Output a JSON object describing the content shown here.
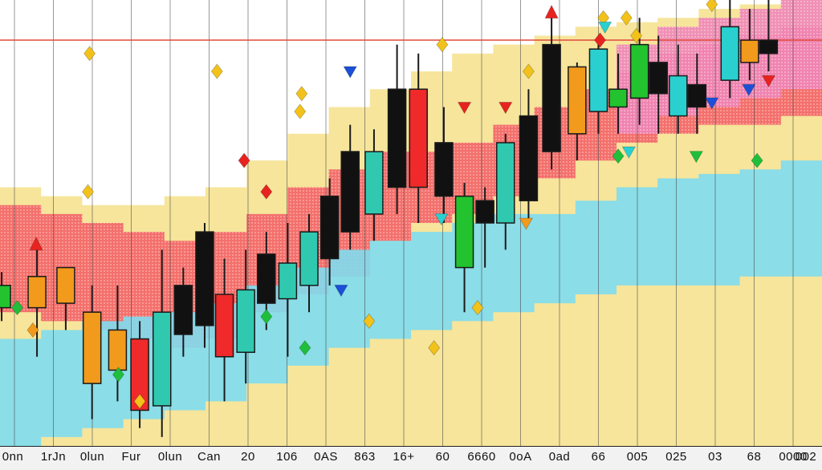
{
  "chart_data": {
    "type": "candlestick",
    "x_tick_labels": [
      "0nn",
      "1rJn",
      "0lun",
      "Fur",
      "0lun",
      "Can",
      "20",
      "106",
      "0AS",
      "863",
      "16+",
      "60",
      "6660",
      "0oA",
      "0ad",
      "66",
      "005",
      "025",
      "03",
      "68",
      "0000",
      "002"
    ],
    "ylim": [
      0,
      100
    ],
    "grid": true,
    "legend": "none",
    "colors": {
      "candle_black": "#111111",
      "candle_red": "#f02a2a",
      "candle_green": "#22c32e",
      "candle_cyan": "#2ad0cf",
      "candle_teal": "#30c9b0",
      "candle_orange": "#f29a1c",
      "band_red": "#f25858",
      "band_yellow": "#f5e08a",
      "band_cyan": "#7fdcef",
      "band_pink": "#ef7fb6",
      "marker_gold": "#f3c21a",
      "marker_red": "#e8231f",
      "marker_blue": "#1c4fd8",
      "marker_green": "#1fbf3b"
    },
    "bands": {
      "x": [
        0,
        5,
        10,
        15,
        20,
        25,
        30,
        35,
        40,
        45,
        50,
        55,
        60,
        65,
        70,
        75,
        80,
        85,
        90,
        95,
        100
      ],
      "cyan_upper": [
        24,
        26,
        28,
        29,
        30,
        32,
        36,
        40,
        44,
        46,
        48,
        50,
        52,
        52,
        55,
        58,
        60,
        61,
        62,
        64,
        68
      ],
      "cyan_lower": [
        0,
        2,
        4,
        6,
        8,
        10,
        14,
        18,
        22,
        24,
        26,
        28,
        30,
        32,
        34,
        36,
        36,
        36,
        38,
        38,
        40
      ],
      "yellow_upper": [
        58,
        56,
        54,
        54,
        56,
        58,
        64,
        70,
        76,
        80,
        84,
        88,
        90,
        92,
        94,
        95,
        96,
        98,
        99,
        100,
        100
      ],
      "red_upper": [
        54,
        52,
        50,
        48,
        46,
        48,
        52,
        58,
        62,
        66,
        66,
        68,
        72,
        76,
        80,
        84,
        88,
        90,
        92,
        94,
        96
      ],
      "red_lower": [
        30,
        28,
        26,
        24,
        22,
        24,
        30,
        34,
        38,
        46,
        50,
        52,
        56,
        60,
        64,
        68,
        70,
        72,
        72,
        74,
        78
      ]
    },
    "candles": [
      {
        "x": 0.2,
        "o": 31,
        "h": 39,
        "l": 28,
        "c": 36,
        "color": "green"
      },
      {
        "x": 4.5,
        "o": 31,
        "h": 44,
        "l": 20,
        "c": 38,
        "color": "orange"
      },
      {
        "x": 8.0,
        "o": 32,
        "h": 40,
        "l": 26,
        "c": 40,
        "color": "orange"
      },
      {
        "x": 11.2,
        "o": 14,
        "h": 36,
        "l": 6,
        "c": 30,
        "color": "orange"
      },
      {
        "x": 14.3,
        "o": 17,
        "h": 36,
        "l": 10,
        "c": 26,
        "color": "orange"
      },
      {
        "x": 17.0,
        "o": 8,
        "h": 28,
        "l": 4,
        "c": 24,
        "color": "red"
      },
      {
        "x": 19.7,
        "o": 9,
        "h": 44,
        "l": 2,
        "c": 30,
        "color": "teal"
      },
      {
        "x": 22.3,
        "o": 25,
        "h": 40,
        "l": 20,
        "c": 36,
        "color": "black"
      },
      {
        "x": 24.9,
        "o": 27,
        "h": 50,
        "l": 22,
        "c": 48,
        "color": "black"
      },
      {
        "x": 27.3,
        "o": 20,
        "h": 42,
        "l": 10,
        "c": 34,
        "color": "red"
      },
      {
        "x": 29.9,
        "o": 21,
        "h": 44,
        "l": 14,
        "c": 35,
        "color": "teal"
      },
      {
        "x": 32.4,
        "o": 32,
        "h": 48,
        "l": 26,
        "c": 43,
        "color": "black"
      },
      {
        "x": 35.0,
        "o": 33,
        "h": 50,
        "l": 20,
        "c": 41,
        "color": "teal"
      },
      {
        "x": 37.6,
        "o": 36,
        "h": 52,
        "l": 30,
        "c": 48,
        "color": "teal"
      },
      {
        "x": 40.1,
        "o": 42,
        "h": 60,
        "l": 36,
        "c": 56,
        "color": "black"
      },
      {
        "x": 42.6,
        "o": 48,
        "h": 72,
        "l": 44,
        "c": 66,
        "color": "black"
      },
      {
        "x": 45.5,
        "o": 52,
        "h": 71,
        "l": 46,
        "c": 66,
        "color": "teal"
      },
      {
        "x": 48.3,
        "o": 58,
        "h": 90,
        "l": 52,
        "c": 80,
        "color": "black"
      },
      {
        "x": 50.9,
        "o": 58,
        "h": 88,
        "l": 50,
        "c": 80,
        "color": "red"
      },
      {
        "x": 54.0,
        "o": 56,
        "h": 76,
        "l": 50,
        "c": 68,
        "color": "black"
      },
      {
        "x": 56.5,
        "o": 40,
        "h": 59,
        "l": 30,
        "c": 56,
        "color": "green"
      },
      {
        "x": 59.0,
        "o": 50,
        "h": 58,
        "l": 40,
        "c": 55,
        "color": "black"
      },
      {
        "x": 61.5,
        "o": 50,
        "h": 70,
        "l": 44,
        "c": 68,
        "color": "teal"
      },
      {
        "x": 64.3,
        "o": 55,
        "h": 80,
        "l": 50,
        "c": 74,
        "color": "black"
      },
      {
        "x": 67.1,
        "o": 66,
        "h": 96,
        "l": 62,
        "c": 90,
        "color": "black"
      },
      {
        "x": 70.2,
        "o": 70,
        "h": 86,
        "l": 64,
        "c": 85,
        "color": "orange"
      },
      {
        "x": 72.8,
        "o": 75,
        "h": 92,
        "l": 70,
        "c": 89,
        "color": "cyan"
      },
      {
        "x": 75.2,
        "o": 76,
        "h": 88,
        "l": 70,
        "c": 80,
        "color": "green"
      },
      {
        "x": 77.8,
        "o": 78,
        "h": 96,
        "l": 72,
        "c": 90,
        "color": "green"
      },
      {
        "x": 80.1,
        "o": 79,
        "h": 92,
        "l": 70,
        "c": 86,
        "color": "black"
      },
      {
        "x": 82.5,
        "o": 74,
        "h": 90,
        "l": 70,
        "c": 83,
        "color": "cyan"
      },
      {
        "x": 84.8,
        "o": 76,
        "h": 88,
        "l": 70,
        "c": 81,
        "color": "black"
      },
      {
        "x": 88.8,
        "o": 82,
        "h": 100,
        "l": 78,
        "c": 94,
        "color": "cyan"
      },
      {
        "x": 91.2,
        "o": 86,
        "h": 98,
        "l": 82,
        "c": 91,
        "color": "orange"
      },
      {
        "x": 93.5,
        "o": 88,
        "h": 100,
        "l": 84,
        "c": 91,
        "color": "black"
      }
    ],
    "markers": [
      {
        "x": 10.9,
        "y": 88,
        "shape": "diamond",
        "color": "gold"
      },
      {
        "x": 26.4,
        "y": 84,
        "shape": "diamond",
        "color": "gold"
      },
      {
        "x": 36.7,
        "y": 79,
        "shape": "diamond",
        "color": "gold"
      },
      {
        "x": 36.5,
        "y": 75,
        "shape": "diamond",
        "color": "gold"
      },
      {
        "x": 29.7,
        "y": 64,
        "shape": "diamond",
        "color": "red"
      },
      {
        "x": 32.4,
        "y": 57,
        "shape": "diamond",
        "color": "red"
      },
      {
        "x": 10.7,
        "y": 57,
        "shape": "diamond",
        "color": "gold"
      },
      {
        "x": 4.4,
        "y": 45,
        "shape": "arrow-up",
        "color": "red"
      },
      {
        "x": 2.1,
        "y": 31,
        "shape": "diamond",
        "color": "green"
      },
      {
        "x": 4.0,
        "y": 26,
        "shape": "diamond",
        "color": "orange"
      },
      {
        "x": 14.4,
        "y": 16,
        "shape": "diamond",
        "color": "green"
      },
      {
        "x": 17.0,
        "y": 10,
        "shape": "diamond",
        "color": "gold"
      },
      {
        "x": 32.4,
        "y": 29,
        "shape": "diamond",
        "color": "green"
      },
      {
        "x": 37.1,
        "y": 22,
        "shape": "diamond",
        "color": "green"
      },
      {
        "x": 41.5,
        "y": 35,
        "shape": "arrow-down",
        "color": "blue"
      },
      {
        "x": 42.6,
        "y": 84,
        "shape": "arrow-down",
        "color": "blue"
      },
      {
        "x": 44.9,
        "y": 28,
        "shape": "diamond",
        "color": "gold"
      },
      {
        "x": 53.8,
        "y": 90,
        "shape": "diamond",
        "color": "gold"
      },
      {
        "x": 52.8,
        "y": 22,
        "shape": "diamond",
        "color": "gold"
      },
      {
        "x": 58.1,
        "y": 31,
        "shape": "diamond",
        "color": "gold"
      },
      {
        "x": 56.5,
        "y": 76,
        "shape": "arrow-down",
        "color": "red"
      },
      {
        "x": 61.5,
        "y": 76,
        "shape": "arrow-down",
        "color": "red"
      },
      {
        "x": 64.3,
        "y": 84,
        "shape": "diamond",
        "color": "gold"
      },
      {
        "x": 53.7,
        "y": 51,
        "shape": "arrow-down",
        "color": "cyan"
      },
      {
        "x": 64.0,
        "y": 50,
        "shape": "arrow-down",
        "color": "orange"
      },
      {
        "x": 67.1,
        "y": 97,
        "shape": "arrow-up",
        "color": "red"
      },
      {
        "x": 73.4,
        "y": 96,
        "shape": "diamond",
        "color": "gold"
      },
      {
        "x": 73.6,
        "y": 94,
        "shape": "arrow-down",
        "color": "cyan"
      },
      {
        "x": 76.2,
        "y": 96,
        "shape": "diamond",
        "color": "gold"
      },
      {
        "x": 77.4,
        "y": 92,
        "shape": "diamond",
        "color": "gold"
      },
      {
        "x": 73.0,
        "y": 91,
        "shape": "diamond",
        "color": "red"
      },
      {
        "x": 75.2,
        "y": 65,
        "shape": "diamond",
        "color": "green"
      },
      {
        "x": 76.5,
        "y": 66,
        "shape": "arrow-down",
        "color": "cyan"
      },
      {
        "x": 84.7,
        "y": 65,
        "shape": "arrow-down",
        "color": "green"
      },
      {
        "x": 86.6,
        "y": 77,
        "shape": "arrow-down",
        "color": "blue"
      },
      {
        "x": 86.6,
        "y": 99,
        "shape": "diamond",
        "color": "gold"
      },
      {
        "x": 91.1,
        "y": 80,
        "shape": "arrow-down",
        "color": "blue"
      },
      {
        "x": 93.5,
        "y": 82,
        "shape": "arrow-down",
        "color": "red"
      },
      {
        "x": 92.1,
        "y": 64,
        "shape": "diamond",
        "color": "green"
      }
    ],
    "reference_line": {
      "y": 91,
      "color": "#e04a3a"
    }
  }
}
